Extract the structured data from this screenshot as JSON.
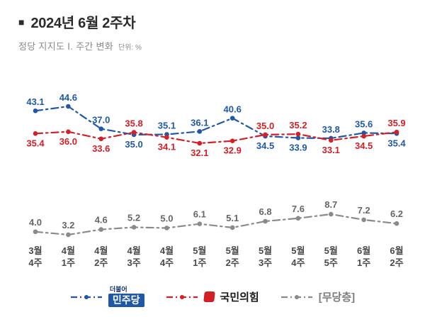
{
  "header": {
    "bullet": "■",
    "title": "2024년 6월 2주차",
    "subtitle": "정당 지지도 Ⅰ. 주간 변화",
    "unit_label": "단위: %"
  },
  "chart_data": {
    "type": "line",
    "unit": "%",
    "line_style": "dash-dot",
    "markers": "circle",
    "grid": false,
    "legend_position": "bottom",
    "categories": [
      [
        "3월",
        "4주"
      ],
      [
        "4월",
        "1주"
      ],
      [
        "4월",
        "2주"
      ],
      [
        "4월",
        "3주"
      ],
      [
        "4월",
        "4주"
      ],
      [
        "5월",
        "1주"
      ],
      [
        "5월",
        "2주"
      ],
      [
        "5월",
        "3주"
      ],
      [
        "5월",
        "4주"
      ],
      [
        "5월",
        "5주"
      ],
      [
        "6월",
        "1주"
      ],
      [
        "6월",
        "2주"
      ]
    ],
    "series": [
      {
        "name": "민주당",
        "color": "#2058a8",
        "values": [
          43.1,
          44.6,
          37.0,
          35.0,
          35.1,
          36.1,
          40.6,
          34.5,
          33.9,
          33.8,
          35.6,
          35.4
        ]
      },
      {
        "name": "국민의힘",
        "color": "#d22027",
        "values": [
          35.4,
          36.0,
          33.6,
          35.8,
          34.1,
          32.1,
          32.9,
          35.0,
          35.2,
          33.1,
          34.5,
          35.9
        ]
      },
      {
        "name": "[무당층]",
        "color": "#8a8a8a",
        "label_color": "#666666",
        "values": [
          4.0,
          3.2,
          4.6,
          5.2,
          5.0,
          6.1,
          5.1,
          6.8,
          7.6,
          8.7,
          7.2,
          6.2
        ]
      }
    ]
  },
  "legend": {
    "minjoo_prefix": "더불어",
    "minjoo_label": "민주당",
    "ppp_label": "국민의힘",
    "mudang_label": "[무당층]",
    "minjoo_color": "#2058a8",
    "ppp_color": "#d22027",
    "mudang_color": "#8a8a8a"
  }
}
